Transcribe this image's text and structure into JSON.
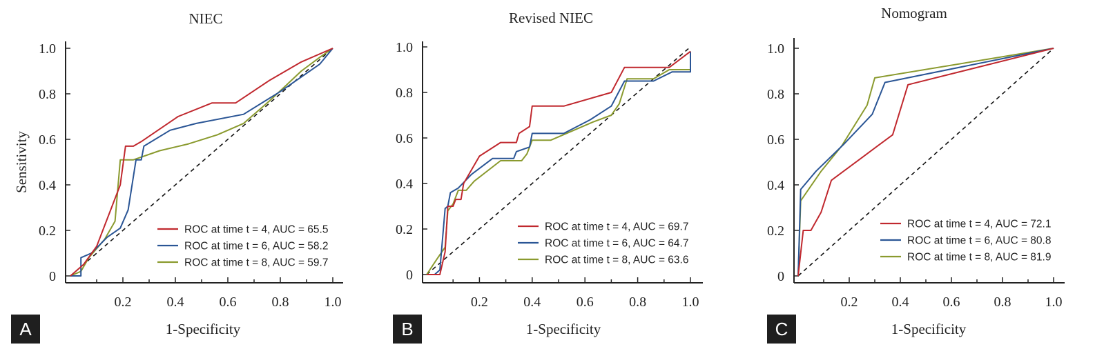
{
  "colors": {
    "t4": "#c0282e",
    "t6": "#2a5595",
    "t8": "#8a9a2e",
    "axis": "#222222",
    "badge": "#1f1f1f"
  },
  "chart_data": [
    {
      "type": "line",
      "badge": "A",
      "title": "NIEC",
      "xlabel": "1-Specificity",
      "ylabel": "Sensitivity",
      "xlim": [
        0,
        1
      ],
      "ylim": [
        0,
        1
      ],
      "x_ticks": [
        "0.2",
        "0.4",
        "0.6",
        "0.8",
        "1.0"
      ],
      "y_ticks": [
        "0",
        "0.2",
        "0.4",
        "0.6",
        "0.8",
        "1.0"
      ],
      "legend": "bottom-right",
      "series": [
        {
          "name": "ROC at time t = 4, AUC = 65.5",
          "points": [
            [
              0,
              0
            ],
            [
              0.05,
              0.05
            ],
            [
              0.1,
              0.13
            ],
            [
              0.15,
              0.28
            ],
            [
              0.19,
              0.4
            ],
            [
              0.21,
              0.57
            ],
            [
              0.24,
              0.57
            ],
            [
              0.27,
              0.59
            ],
            [
              0.41,
              0.7
            ],
            [
              0.54,
              0.76
            ],
            [
              0.63,
              0.76
            ],
            [
              0.76,
              0.86
            ],
            [
              0.88,
              0.94
            ],
            [
              1,
              1
            ]
          ]
        },
        {
          "name": "ROC at time t = 6, AUC = 58.2",
          "points": [
            [
              0,
              0
            ],
            [
              0.04,
              0
            ],
            [
              0.04,
              0.08
            ],
            [
              0.08,
              0.1
            ],
            [
              0.14,
              0.17
            ],
            [
              0.19,
              0.21
            ],
            [
              0.22,
              0.29
            ],
            [
              0.25,
              0.51
            ],
            [
              0.27,
              0.51
            ],
            [
              0.28,
              0.57
            ],
            [
              0.38,
              0.64
            ],
            [
              0.48,
              0.67
            ],
            [
              0.66,
              0.71
            ],
            [
              0.8,
              0.81
            ],
            [
              0.95,
              0.93
            ],
            [
              1,
              1
            ]
          ]
        },
        {
          "name": "ROC at time t = 8, AUC = 59.7",
          "points": [
            [
              0,
              0
            ],
            [
              0.04,
              0.02
            ],
            [
              0.07,
              0.08
            ],
            [
              0.13,
              0.16
            ],
            [
              0.17,
              0.24
            ],
            [
              0.19,
              0.51
            ],
            [
              0.24,
              0.51
            ],
            [
              0.34,
              0.55
            ],
            [
              0.45,
              0.58
            ],
            [
              0.56,
              0.62
            ],
            [
              0.66,
              0.67
            ],
            [
              0.76,
              0.77
            ],
            [
              0.88,
              0.9
            ],
            [
              0.95,
              0.96
            ],
            [
              1,
              1
            ]
          ]
        }
      ]
    },
    {
      "type": "line",
      "badge": "B",
      "title": "Revised NIEC",
      "xlabel": "1-Specificity",
      "ylabel": "",
      "xlim": [
        0,
        1
      ],
      "ylim": [
        0,
        1
      ],
      "x_ticks": [
        "0.2",
        "0.4",
        "0.6",
        "0.8",
        "1.0"
      ],
      "y_ticks": [
        "0",
        "0.2",
        "0.4",
        "0.6",
        "0.8",
        "1.0"
      ],
      "legend": "bottom-right",
      "series": [
        {
          "name": "ROC at time t = 4, AUC = 69.7",
          "points": [
            [
              0,
              0
            ],
            [
              0.05,
              0
            ],
            [
              0.07,
              0.1
            ],
            [
              0.08,
              0.3
            ],
            [
              0.1,
              0.3
            ],
            [
              0.11,
              0.33
            ],
            [
              0.13,
              0.33
            ],
            [
              0.14,
              0.4
            ],
            [
              0.2,
              0.52
            ],
            [
              0.28,
              0.58
            ],
            [
              0.34,
              0.58
            ],
            [
              0.35,
              0.62
            ],
            [
              0.39,
              0.65
            ],
            [
              0.4,
              0.74
            ],
            [
              0.48,
              0.74
            ],
            [
              0.52,
              0.74
            ],
            [
              0.7,
              0.8
            ],
            [
              0.75,
              0.91
            ],
            [
              0.86,
              0.91
            ],
            [
              0.92,
              0.91
            ],
            [
              1,
              0.98
            ]
          ]
        },
        {
          "name": "ROC at time t = 6, AUC = 64.7",
          "points": [
            [
              0,
              0
            ],
            [
              0.03,
              0
            ],
            [
              0.05,
              0.02
            ],
            [
              0.07,
              0.29
            ],
            [
              0.08,
              0.3
            ],
            [
              0.09,
              0.36
            ],
            [
              0.12,
              0.38
            ],
            [
              0.17,
              0.44
            ],
            [
              0.25,
              0.51
            ],
            [
              0.33,
              0.51
            ],
            [
              0.34,
              0.54
            ],
            [
              0.39,
              0.56
            ],
            [
              0.4,
              0.62
            ],
            [
              0.52,
              0.62
            ],
            [
              0.62,
              0.68
            ],
            [
              0.7,
              0.74
            ],
            [
              0.75,
              0.85
            ],
            [
              0.86,
              0.85
            ],
            [
              0.93,
              0.89
            ],
            [
              1,
              0.89
            ],
            [
              1,
              0.98
            ]
          ]
        },
        {
          "name": "ROC at time t = 8, AUC = 63.6",
          "points": [
            [
              0,
              0
            ],
            [
              0.04,
              0.07
            ],
            [
              0.07,
              0.12
            ],
            [
              0.08,
              0.28
            ],
            [
              0.1,
              0.31
            ],
            [
              0.12,
              0.37
            ],
            [
              0.15,
              0.37
            ],
            [
              0.18,
              0.41
            ],
            [
              0.28,
              0.5
            ],
            [
              0.36,
              0.5
            ],
            [
              0.38,
              0.53
            ],
            [
              0.4,
              0.59
            ],
            [
              0.47,
              0.59
            ],
            [
              0.53,
              0.62
            ],
            [
              0.63,
              0.67
            ],
            [
              0.7,
              0.7
            ],
            [
              0.73,
              0.75
            ],
            [
              0.76,
              0.86
            ],
            [
              0.86,
              0.86
            ],
            [
              0.92,
              0.9
            ],
            [
              1,
              0.9
            ],
            [
              1,
              0.98
            ]
          ]
        }
      ]
    },
    {
      "type": "line",
      "badge": "C",
      "title": "Nomogram",
      "xlabel": "1-Specificity",
      "ylabel": "",
      "xlim": [
        0,
        1
      ],
      "ylim": [
        0,
        1
      ],
      "x_ticks": [
        "0.2",
        "0.4",
        "0.6",
        "0.8",
        "1.0"
      ],
      "y_ticks": [
        "0",
        "0.2",
        "0.4",
        "0.6",
        "0.8",
        "1.0"
      ],
      "legend": "bottom-right",
      "series": [
        {
          "name": "ROC at time t = 4, AUC = 72.1",
          "points": [
            [
              0,
              0
            ],
            [
              0.02,
              0.2
            ],
            [
              0.05,
              0.2
            ],
            [
              0.09,
              0.28
            ],
            [
              0.13,
              0.42
            ],
            [
              0.25,
              0.52
            ],
            [
              0.37,
              0.62
            ],
            [
              0.43,
              0.84
            ],
            [
              1,
              1
            ]
          ]
        },
        {
          "name": "ROC at time t = 6, AUC = 80.8",
          "points": [
            [
              0,
              0
            ],
            [
              0.01,
              0.38
            ],
            [
              0.07,
              0.46
            ],
            [
              0.18,
              0.58
            ],
            [
              0.29,
              0.71
            ],
            [
              0.34,
              0.85
            ],
            [
              1,
              1
            ]
          ]
        },
        {
          "name": "ROC at time t = 8, AUC = 81.9",
          "points": [
            [
              0,
              0
            ],
            [
              0.01,
              0.33
            ],
            [
              0.09,
              0.46
            ],
            [
              0.17,
              0.57
            ],
            [
              0.27,
              0.75
            ],
            [
              0.3,
              0.87
            ],
            [
              1,
              1
            ]
          ]
        }
      ]
    }
  ]
}
